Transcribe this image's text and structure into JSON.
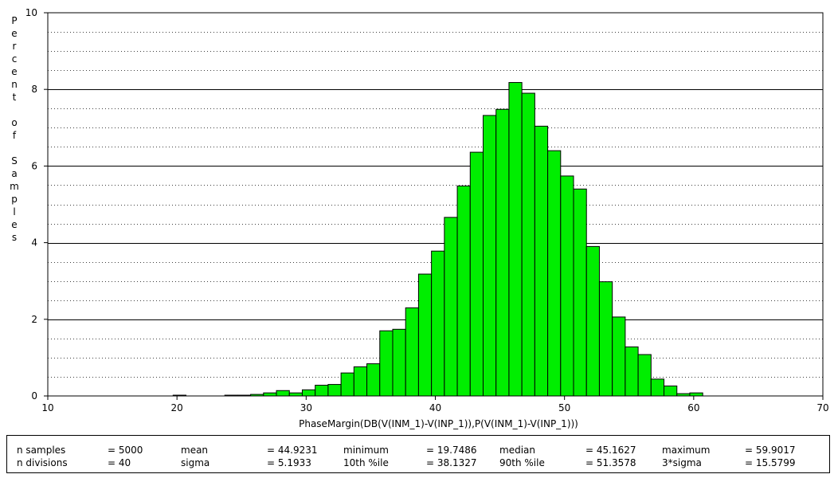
{
  "chart_data": {
    "type": "bar",
    "title": "",
    "xlabel": "PhaseMargin(DB(V(INM_1)-V(INP_1)),P(V(INM_1)-V(INP_1)))",
    "ylabel": "Percent of Samples",
    "ylabel_words": [
      "Percent",
      "of",
      "Samples"
    ],
    "xlim": [
      10,
      70
    ],
    "ylim": [
      0,
      10
    ],
    "x_ticks": [
      "10",
      "20",
      "30",
      "40",
      "50",
      "60",
      "70"
    ],
    "y_ticks": [
      "0",
      "2",
      "4",
      "6",
      "8",
      "10"
    ],
    "grid": true,
    "bin_width": 1.0,
    "bins": [
      {
        "x0": 19.7,
        "value": 0.02
      },
      {
        "x0": 23.7,
        "value": 0.02
      },
      {
        "x0": 24.7,
        "value": 0.02
      },
      {
        "x0": 25.7,
        "value": 0.04
      },
      {
        "x0": 26.7,
        "value": 0.08
      },
      {
        "x0": 27.7,
        "value": 0.14
      },
      {
        "x0": 28.7,
        "value": 0.08
      },
      {
        "x0": 29.7,
        "value": 0.16
      },
      {
        "x0": 30.7,
        "value": 0.28
      },
      {
        "x0": 31.7,
        "value": 0.3
      },
      {
        "x0": 32.7,
        "value": 0.6
      },
      {
        "x0": 33.7,
        "value": 0.76
      },
      {
        "x0": 34.7,
        "value": 0.84
      },
      {
        "x0": 35.7,
        "value": 1.7
      },
      {
        "x0": 36.7,
        "value": 1.74
      },
      {
        "x0": 37.7,
        "value": 2.3
      },
      {
        "x0": 38.7,
        "value": 3.18
      },
      {
        "x0": 39.7,
        "value": 3.78
      },
      {
        "x0": 40.7,
        "value": 4.66
      },
      {
        "x0": 41.7,
        "value": 5.48
      },
      {
        "x0": 42.7,
        "value": 6.36
      },
      {
        "x0": 43.7,
        "value": 7.32
      },
      {
        "x0": 44.7,
        "value": 7.48
      },
      {
        "x0": 45.7,
        "value": 8.18
      },
      {
        "x0": 46.7,
        "value": 7.9
      },
      {
        "x0": 47.7,
        "value": 7.04
      },
      {
        "x0": 48.7,
        "value": 6.4
      },
      {
        "x0": 49.7,
        "value": 5.74
      },
      {
        "x0": 50.7,
        "value": 5.4
      },
      {
        "x0": 51.7,
        "value": 3.9
      },
      {
        "x0": 52.7,
        "value": 2.98
      },
      {
        "x0": 53.7,
        "value": 2.06
      },
      {
        "x0": 54.7,
        "value": 1.28
      },
      {
        "x0": 55.7,
        "value": 1.08
      },
      {
        "x0": 56.7,
        "value": 0.44
      },
      {
        "x0": 57.7,
        "value": 0.26
      },
      {
        "x0": 58.7,
        "value": 0.06
      },
      {
        "x0": 59.7,
        "value": 0.08
      }
    ],
    "colors": {
      "bar_fill": "#00ee00",
      "bar_stroke": "#000000",
      "grid_major": "#000000",
      "grid_minor": "#000000"
    }
  },
  "stats": [
    [
      {
        "label": "n samples",
        "value": "= 5000"
      },
      {
        "label": "mean",
        "value": "= 44.9231"
      },
      {
        "label": "minimum",
        "value": "= 19.7486"
      },
      {
        "label": "median",
        "value": "= 45.1627"
      },
      {
        "label": "maximum",
        "value": "= 59.9017"
      }
    ],
    [
      {
        "label": "n divisions",
        "value": "= 40"
      },
      {
        "label": "sigma",
        "value": "= 5.1933"
      },
      {
        "label": "10th %ile",
        "value": "= 38.1327"
      },
      {
        "label": "90th %ile",
        "value": "= 51.3578"
      },
      {
        "label": "3*sigma",
        "value": "= 15.5799"
      }
    ]
  ]
}
